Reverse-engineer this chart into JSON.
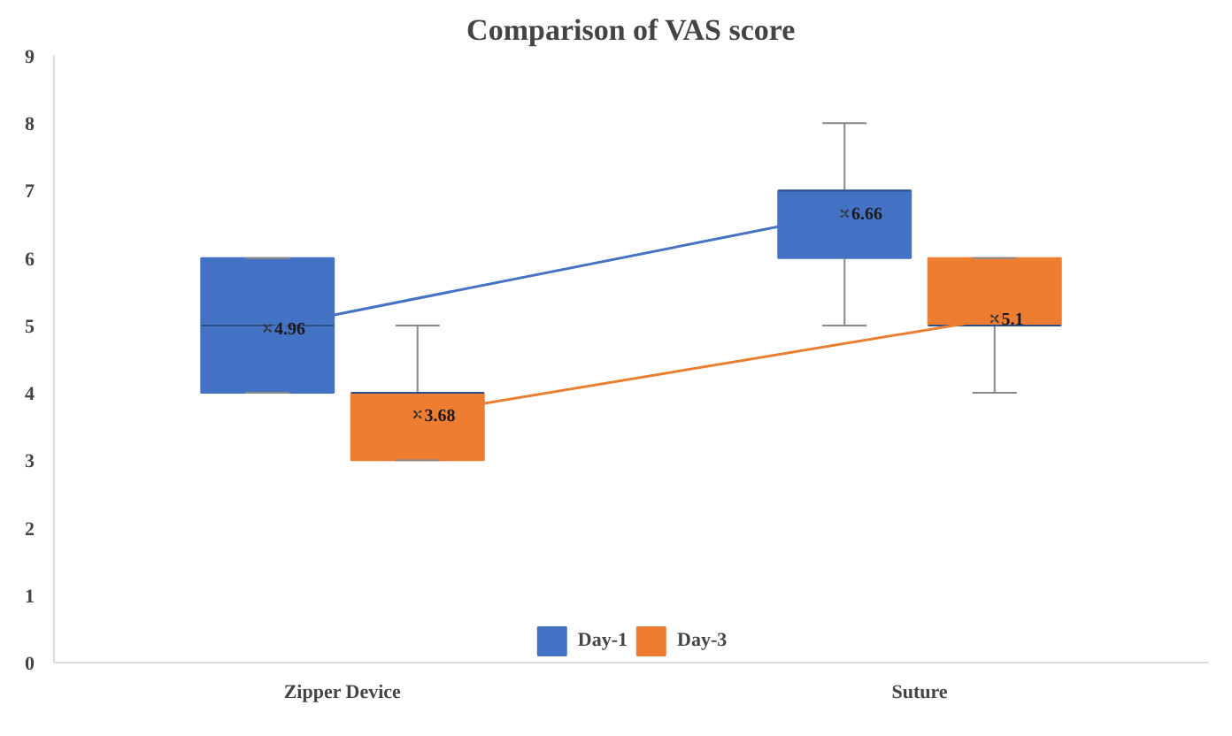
{
  "chart_data": {
    "type": "box",
    "title": "Comparison of VAS score",
    "categories": [
      "Zipper Device",
      "Suture"
    ],
    "series": [
      {
        "name": "Day-1",
        "color": "#4472c4",
        "boxes": [
          {
            "low": 4,
            "q1": 4,
            "median": 5,
            "q3": 6,
            "high": 6,
            "mean": 4.96
          },
          {
            "low": 5,
            "q1": 6,
            "median": 7,
            "q3": 7,
            "high": 8,
            "mean": 6.66
          }
        ]
      },
      {
        "name": "Day-3",
        "color": "#ed7d31",
        "boxes": [
          {
            "low": 3,
            "q1": 3,
            "median": 4,
            "q3": 4,
            "high": 5,
            "mean": 3.68
          },
          {
            "low": 4,
            "q1": 5,
            "median": 5,
            "q3": 6,
            "high": 6,
            "mean": 5.1
          }
        ]
      },
      {
        "type": "line",
        "color": "#4472c4",
        "values": [
          4.96,
          6.66
        ]
      },
      {
        "type": "line",
        "color": "#ed7d31",
        "values": [
          3.68,
          5.1
        ]
      }
    ],
    "ylim": [
      0,
      9
    ],
    "yticks": [
      0,
      1,
      2,
      3,
      4,
      5,
      6,
      7,
      8,
      9
    ],
    "data_labels": true,
    "grid": false,
    "legend": "bottom"
  }
}
